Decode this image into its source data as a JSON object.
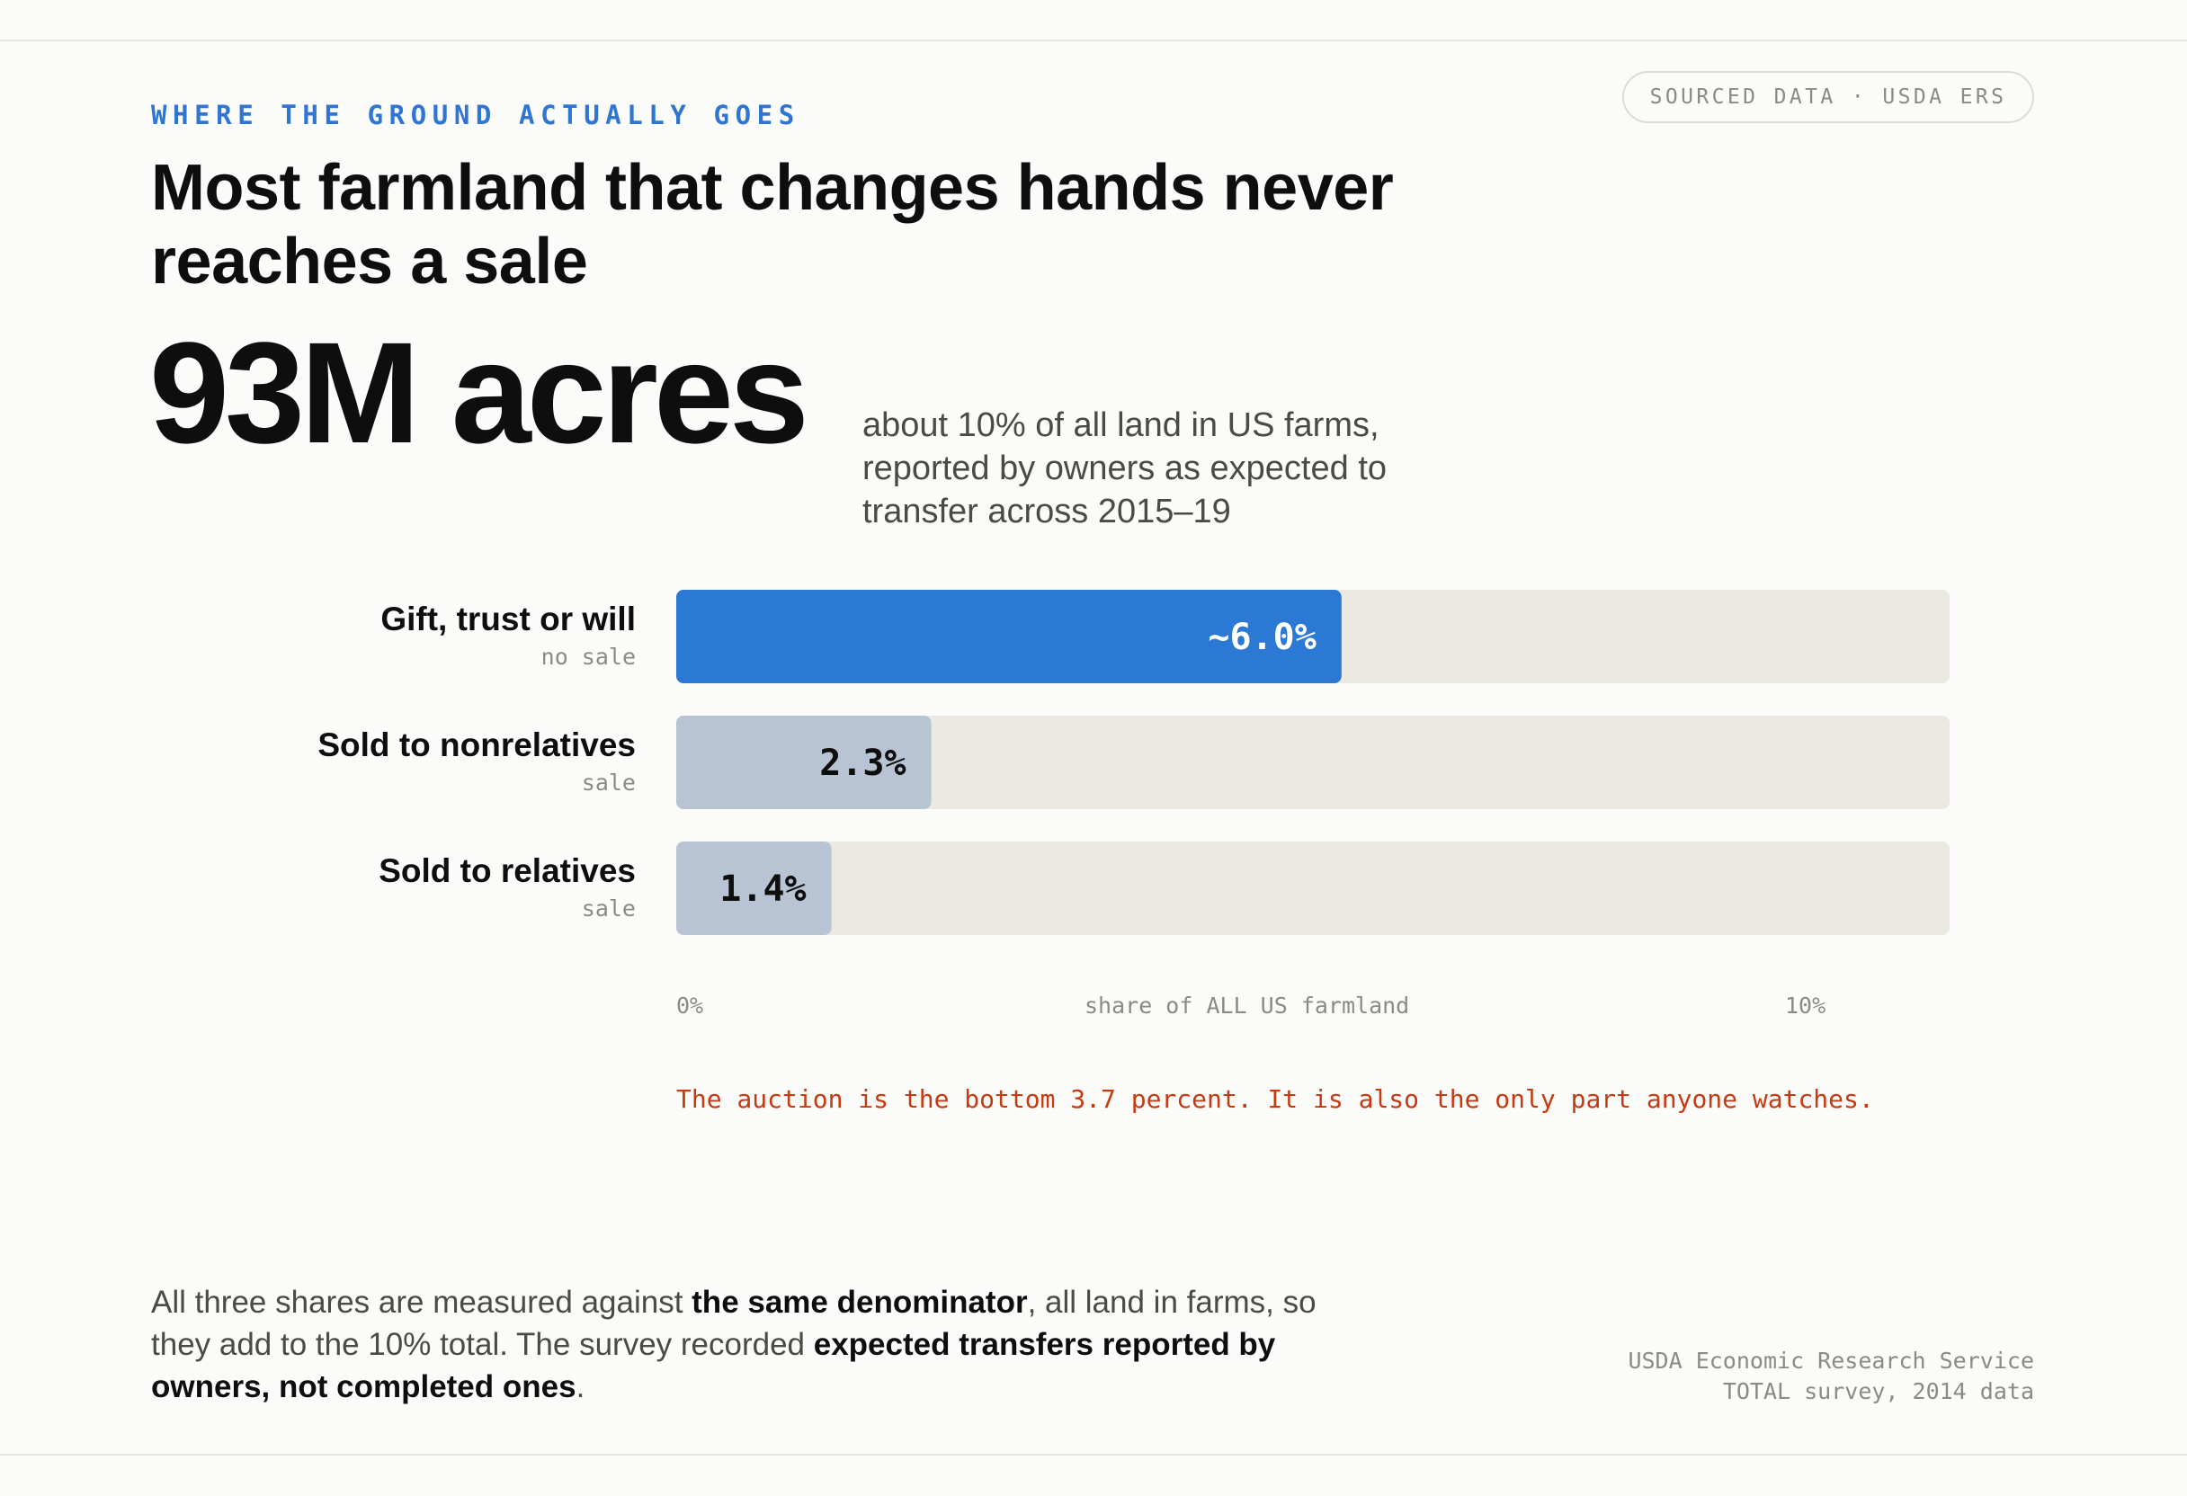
{
  "header": {
    "eyebrow": "WHERE THE GROUND ACTUALLY GOES",
    "badge": "SOURCED DATA · USDA ERS",
    "title": "Most farmland that changes hands never reaches a sale"
  },
  "headline": {
    "value": "93M acres",
    "description": "about 10% of all land in US farms, reported by owners as expected to transfer across 2015–19"
  },
  "colors": {
    "highlight": "#2b78d5",
    "muted_bar": "#b8c4d3",
    "track": "#ece9e3",
    "callout": "#c63a12"
  },
  "chart_data": {
    "type": "bar",
    "orientation": "horizontal",
    "categories": [
      "Gift, trust or will",
      "Sold to nonrelatives",
      "Sold to relatives"
    ],
    "category_tags": [
      "no sale",
      "sale",
      "sale"
    ],
    "values": [
      6.0,
      2.3,
      1.4
    ],
    "value_labels": [
      "~6.0%",
      "2.3%",
      "1.4%"
    ],
    "highlight_index": 0,
    "xlabel": "share of ALL US farmland",
    "x_ticks": [
      "0%",
      "10%"
    ],
    "xlim": [
      0,
      10
    ],
    "grid": false
  },
  "callout": "The auction is the bottom 3.7 percent. It is also the only part anyone watches.",
  "footnote": {
    "p1": "All three shares are measured against ",
    "b1": "the same denominator",
    "p2": ", all land in farms, so they add to the 10% total. The survey recorded ",
    "b2": "expected transfers reported by owners, not completed ones",
    "p3": "."
  },
  "source": {
    "line1": "USDA Economic Research Service",
    "line2": "TOTAL survey, 2014 data"
  }
}
